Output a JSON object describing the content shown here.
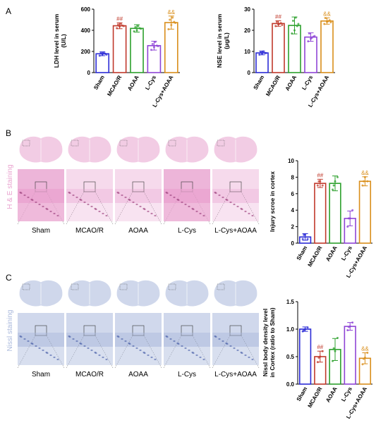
{
  "panels": {
    "a_label": "A",
    "b_label": "B",
    "c_label": "C"
  },
  "colors": {
    "groups": [
      "#2b2bd6",
      "#c0392b",
      "#2ca02c",
      "#8e44d6",
      "#d98e1a"
    ],
    "he_tissue": "#e9a3cf",
    "nissl_tissue": "#a9b8dc"
  },
  "histology": {
    "columns": [
      "Sham",
      "MCAO/R",
      "AOAA",
      "L-Cys",
      "L-Cys+AOAA"
    ],
    "he_row_label": "H & E staining",
    "nissl_row_label": "Nissl staining"
  },
  "chart_data": [
    {
      "type": "bar",
      "categories": [
        "Sham",
        "MCAO/R",
        "AOAA",
        "L-Cys",
        "L-Cys+AOAA"
      ],
      "values": [
        178,
        443,
        418,
        255,
        473
      ],
      "errors": [
        18,
        28,
        35,
        42,
        62
      ],
      "ylabel_lines": [
        "LDH level in serum",
        "(U/L)"
      ],
      "ylim": [
        0,
        600
      ],
      "yticks": [
        0,
        200,
        400,
        600
      ],
      "annotations": [
        {
          "index": 1,
          "text": "##"
        },
        {
          "index": 4,
          "text": "&&"
        }
      ],
      "points": [
        [
          160,
          172,
          178,
          185,
          190,
          170
        ],
        [
          420,
          435,
          445,
          455,
          460,
          440
        ],
        [
          390,
          400,
          420,
          430,
          440,
          415
        ],
        [
          215,
          240,
          255,
          270,
          290,
          250
        ],
        [
          410,
          450,
          480,
          500,
          520,
          470
        ]
      ]
    },
    {
      "type": "bar",
      "categories": [
        "Sham",
        "MCAO/R",
        "AOAA",
        "L-Cys",
        "L-Cys+AOAA"
      ],
      "values": [
        9.3,
        23.2,
        22.3,
        16.8,
        24.4
      ],
      "errors": [
        0.9,
        1.3,
        4.0,
        2.0,
        1.5
      ],
      "ylabel_lines": [
        "NSE level in serum",
        "(μg/L)"
      ],
      "ylim": [
        0,
        30
      ],
      "yticks": [
        0,
        10,
        20,
        30
      ],
      "annotations": [
        {
          "index": 1,
          "text": "##"
        },
        {
          "index": 4,
          "text": "&&"
        }
      ],
      "points": [
        [
          8.5,
          9.0,
          9.3,
          9.6,
          10.0,
          9.2
        ],
        [
          22.0,
          22.8,
          23.4,
          24.0,
          23.1,
          22.5
        ],
        [
          18.5,
          20.0,
          22.0,
          24.5,
          26.0,
          23.0
        ],
        [
          14.8,
          16.0,
          17.0,
          18.5,
          16.5,
          17.3
        ],
        [
          23.0,
          24.0,
          24.8,
          25.8,
          24.3,
          23.8
        ]
      ]
    },
    {
      "type": "bar",
      "categories": [
        "Sham",
        "MCAO/R",
        "AOAA",
        "L-Cys",
        "L-Cys+AOAA"
      ],
      "values": [
        0.75,
        7.25,
        7.25,
        3.0,
        7.5
      ],
      "errors": [
        0.4,
        0.5,
        0.9,
        0.9,
        0.55
      ],
      "ylabel_lines": [
        "Injury scroe in cortex"
      ],
      "ylim": [
        0,
        10
      ],
      "yticks": [
        0,
        2,
        4,
        6,
        8,
        10
      ],
      "annotations": [
        {
          "index": 1,
          "text": "##"
        },
        {
          "index": 4,
          "text": "&&"
        }
      ],
      "points": [
        [
          0.5,
          1.0,
          0.5,
          1.0
        ],
        [
          7.0,
          7.5,
          7.0,
          7.5
        ],
        [
          6.5,
          7.5,
          8.0,
          7.0
        ],
        [
          2.0,
          3.0,
          4.0,
          3.0
        ],
        [
          7.0,
          8.0,
          7.5,
          7.5
        ]
      ]
    },
    {
      "type": "bar",
      "categories": [
        "Sham",
        "MCAO/R",
        "AOAA",
        "L-Cys",
        "L-Cys+AOAA"
      ],
      "values": [
        1.0,
        0.5,
        0.63,
        1.05,
        0.47
      ],
      "errors": [
        0.04,
        0.1,
        0.2,
        0.07,
        0.1
      ],
      "ylabel_lines": [
        "Nissl body density level",
        "in Cortex (ratio to Sham)"
      ],
      "ylim": [
        0,
        1.5
      ],
      "yticks": [
        0.0,
        0.5,
        1.0,
        1.5
      ],
      "annotations": [
        {
          "index": 1,
          "text": "##"
        },
        {
          "index": 4,
          "text": "&&"
        }
      ],
      "points": [
        [
          0.96,
          1.0,
          1.03,
          0.98
        ],
        [
          0.4,
          0.5,
          0.6,
          0.48
        ],
        [
          0.42,
          0.6,
          0.84,
          0.65
        ],
        [
          0.98,
          1.05,
          1.12,
          1.04
        ],
        [
          0.36,
          0.48,
          0.57,
          0.46
        ]
      ]
    }
  ]
}
